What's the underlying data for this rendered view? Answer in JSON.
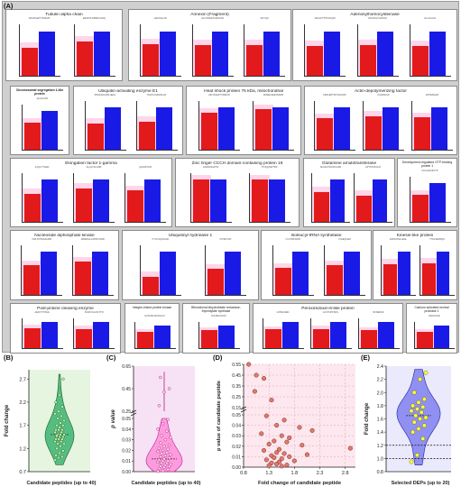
{
  "panel_labels": {
    "a": "(A)",
    "b": "(B)",
    "c": "(C)",
    "d": "(D)",
    "e": "(E)"
  },
  "panel_a": {
    "proteins": [
      {
        "title": "Tubulin alpha chain",
        "peptides": [
          "AIFVDLEPTVIDEVR",
          "EIIDPVLDRIRKLSDQ"
        ],
        "fold_change": [
          1.6,
          1.3
        ]
      },
      {
        "title": "Annexin (Fragment)",
        "peptides": [
          "GEGSGLAK",
          "GLGTDEDTLIEIICSR",
          "GDYQK"
        ],
        "fold_change": [
          1.4,
          1.45,
          1.45
        ]
      },
      {
        "title": "Adenosylhomocysteinase",
        "peptides": [
          "DAAIGTTTDVHQIR",
          "VAVVAGYGDVGK",
          "ELLALGGI"
        ],
        "fold_change": [
          1.5,
          1.45,
          1.5
        ]
      },
      {
        "title": "Chromosomal segregation 1-like protein",
        "peptides": [
          "QLGGASK"
        ],
        "fold_change": [
          1.45
        ]
      },
      {
        "title": "Ubiquitin-activating enzyme E1",
        "peptides": [
          "IPAVASGLDKLIEHG",
          "TALPLGVEADLLR"
        ],
        "fold_change": [
          1.6,
          1.5
        ]
      },
      {
        "title": "Heat shock protein 75 kDa, mitochondrial",
        "peptides": [
          "AIFVDLEPTVIDEVR",
          "DNSELSEETEFRR"
        ],
        "fold_change": [
          1.15,
          1.05
        ]
      },
      {
        "title": "Actin-depolymerizing factor",
        "peptides": [
          "KFDLEPTWTLDLKRK",
          "FGIDAKAK",
          "FMTEDAAR"
        ],
        "fold_change": [
          1.35,
          1.25,
          1.3
        ]
      },
      {
        "title": "Elongation factor 1-gamma",
        "peptides": [
          "ILQLLTYEAR",
          "ALQLYALGSR",
          "QAFAPVGK"
        ],
        "fold_change": [
          1.5,
          1.25,
          1.35
        ]
      },
      {
        "title": "Zinc finger CCCH domain-containing protein 19",
        "peptides": [
          "AAIRANGATW",
          "TTNQQGRTPR"
        ],
        "fold_change": [
          0.9,
          0.75
        ]
      },
      {
        "title": "Glutamine amidotransferase",
        "peptides": [
          "NLVALPSIGPGGSR",
          "APTSTAKGLR"
        ],
        "fold_change": [
          1.4,
          1.6
        ]
      },
      {
        "title": "Development-regulated GTP-binding protein 1",
        "peptides": [
          "GGGAGFEVTK"
        ],
        "fold_change": [
          1.45
        ]
      },
      {
        "title": "Nucleoside diphosphate kinase",
        "peptides": [
          "VWLNYPEGKLWR",
          "DMRAGLGVDNVGRR"
        ],
        "fold_change": [
          1.45,
          1.3
        ]
      },
      {
        "title": "Ubiquitinyl hydrolase 1",
        "peptides": [
          "FYVLSQGGGIK",
          "FIYEPVVR"
        ],
        "fold_change": [
          2.35,
          1.65
        ]
      },
      {
        "title": "Isoleucyl-tRNA synthetase",
        "peptides": [
          "LYLVWFSIDR",
          "FIGEQLEIK"
        ],
        "fold_change": [
          1.6,
          1.45
        ]
      },
      {
        "title": "Kinesin-like protein",
        "peptides": [
          "ENISVASLLEAL",
          "YTALSERSQK"
        ],
        "fold_change": [
          1.4,
          1.35
        ]
      },
      {
        "title": "Post-proline cleaving enzyme",
        "peptides": [
          "AEIDYTSTEIL",
          "DGKFVLLRGTTR"
        ],
        "fold_change": [
          1.3,
          1.35
        ]
      },
      {
        "title": "Integrin-linked protein kinase",
        "peptides": [
          "GASHSLVEGSGLK"
        ],
        "fold_change": [
          1.45
        ]
      },
      {
        "title": "Bifunctional dihydrofolate reductase-thymidylate synthase",
        "peptides": [
          "IGGSEAGSLK"
        ],
        "fold_change": [
          1.3
        ]
      },
      {
        "title": "Peroxiredoxin-6-like protein",
        "peptides": [
          "LFPEGSEN",
          "LGVTHPFSKG",
          "NFDEIIGK"
        ],
        "fold_change": [
          1.4,
          1.35,
          1.45
        ]
      },
      {
        "title": "Calcium activated neutral protease 1",
        "peptides": [
          "DEGSLAE"
        ],
        "fold_change": [
          1.45
        ]
      }
    ]
  },
  "chart_data": [
    {
      "type": "violin",
      "panel": "(B)",
      "xlabel": "Candidate peptides (up to 40)",
      "ylabel": "Fold change",
      "yticks": [
        "0.7",
        "1.2",
        "1.7",
        "2.2",
        "2.7"
      ],
      "ylim": [
        0.7,
        2.9
      ],
      "values": [
        0.95,
        1.0,
        1.02,
        1.05,
        1.1,
        1.15,
        1.2,
        1.25,
        1.3,
        1.3,
        1.35,
        1.35,
        1.4,
        1.4,
        1.4,
        1.45,
        1.45,
        1.45,
        1.5,
        1.5,
        1.5,
        1.55,
        1.55,
        1.6,
        1.6,
        1.6,
        1.65,
        1.7,
        1.7,
        1.75,
        1.8,
        1.85,
        1.9,
        1.95,
        2.0,
        2.1,
        2.2,
        2.35,
        2.7,
        1.48
      ]
    },
    {
      "type": "violin",
      "panel": "(C)",
      "xlabel": "Candidate peptides (up to 40)",
      "ylabel": "p value",
      "yticks": [
        "0.00",
        "0.01",
        "0.02",
        "0.03",
        "0.04",
        "0.05",
        "0.25",
        "0.45",
        "0.65"
      ],
      "axis_break": [
        0.05,
        0.25
      ],
      "values": [
        0.0003,
        0.001,
        0.002,
        0.003,
        0.004,
        0.005,
        0.005,
        0.006,
        0.007,
        0.008,
        0.008,
        0.009,
        0.01,
        0.01,
        0.011,
        0.012,
        0.013,
        0.014,
        0.015,
        0.016,
        0.017,
        0.018,
        0.019,
        0.02,
        0.021,
        0.022,
        0.024,
        0.025,
        0.027,
        0.03,
        0.032,
        0.034,
        0.038,
        0.04,
        0.045,
        0.049,
        0.3,
        0.42,
        0.45,
        0.55
      ]
    },
    {
      "type": "scatter",
      "panel": "(D)",
      "xlabel": "Fold change of candidate peptide",
      "ylabel": "p value of candidate peptide",
      "xticks": [
        "0.8",
        "1.3",
        "1.8",
        "2.3",
        "2.8"
      ],
      "xlim": [
        0.8,
        3.0
      ],
      "yticks": [
        "0.00",
        "0.01",
        "0.02",
        "0.03",
        "0.04",
        "0.05",
        "0.15",
        "0.25",
        "0.35",
        "0.45",
        "0.55"
      ],
      "axis_break": [
        0.05,
        0.15
      ],
      "points": [
        [
          0.9,
          0.55
        ],
        [
          1.05,
          0.45
        ],
        [
          1.2,
          0.42
        ],
        [
          1.02,
          0.3
        ],
        [
          1.35,
          0.22
        ],
        [
          1.25,
          0.049
        ],
        [
          1.6,
          0.045
        ],
        [
          1.45,
          0.04
        ],
        [
          1.9,
          0.038
        ],
        [
          2.15,
          0.035
        ],
        [
          1.15,
          0.032
        ],
        [
          1.55,
          0.03
        ],
        [
          1.7,
          0.028
        ],
        [
          1.4,
          0.025
        ],
        [
          1.65,
          0.024
        ],
        [
          1.3,
          0.022
        ],
        [
          1.95,
          0.021
        ],
        [
          2.9,
          0.018
        ],
        [
          1.5,
          0.017
        ],
        [
          1.2,
          0.016
        ],
        [
          1.45,
          0.014
        ],
        [
          1.6,
          0.013
        ],
        [
          2.05,
          0.012
        ],
        [
          1.35,
          0.011
        ],
        [
          1.7,
          0.01
        ],
        [
          1.4,
          0.009
        ],
        [
          1.55,
          0.008
        ],
        [
          1.25,
          0.007
        ],
        [
          1.8,
          0.006
        ],
        [
          1.5,
          0.005
        ],
        [
          1.35,
          0.004
        ],
        [
          1.45,
          0.003
        ],
        [
          1.65,
          0.002
        ],
        [
          1.3,
          0.0015
        ],
        [
          1.55,
          0.001
        ]
      ]
    },
    {
      "type": "violin",
      "panel": "(E)",
      "xlabel": "Selected DEPs (up to 20)",
      "ylabel": "Fold change",
      "yticks": [
        "0.8",
        "1.0",
        "1.2",
        "1.4",
        "1.6",
        "1.8",
        "2.0",
        "2.2",
        "2.4"
      ],
      "ylim": [
        0.8,
        2.4
      ],
      "reference_lines": [
        1.2,
        1.0
      ],
      "values": [
        0.95,
        1.05,
        1.3,
        1.4,
        1.45,
        1.5,
        1.55,
        1.6,
        1.62,
        1.65,
        1.7,
        1.72,
        1.75,
        1.78,
        1.8,
        1.85,
        1.9,
        2.0,
        2.2,
        2.3
      ]
    }
  ],
  "colors": {
    "bar_control": "#e31a1c",
    "bar_treatment": "#1a1ae6",
    "violin_b": "#3cb371",
    "violin_b_bg": "#e6f5e0",
    "violin_c": "#ff8ad8",
    "violin_c_bg": "#f7e1f4",
    "scatter_point": "#e07a6e",
    "scatter_bg": "#fce8ee",
    "violin_e": "#8080f0",
    "violin_e_bg": "#eaeafc",
    "dot_e": "#ffff33"
  }
}
